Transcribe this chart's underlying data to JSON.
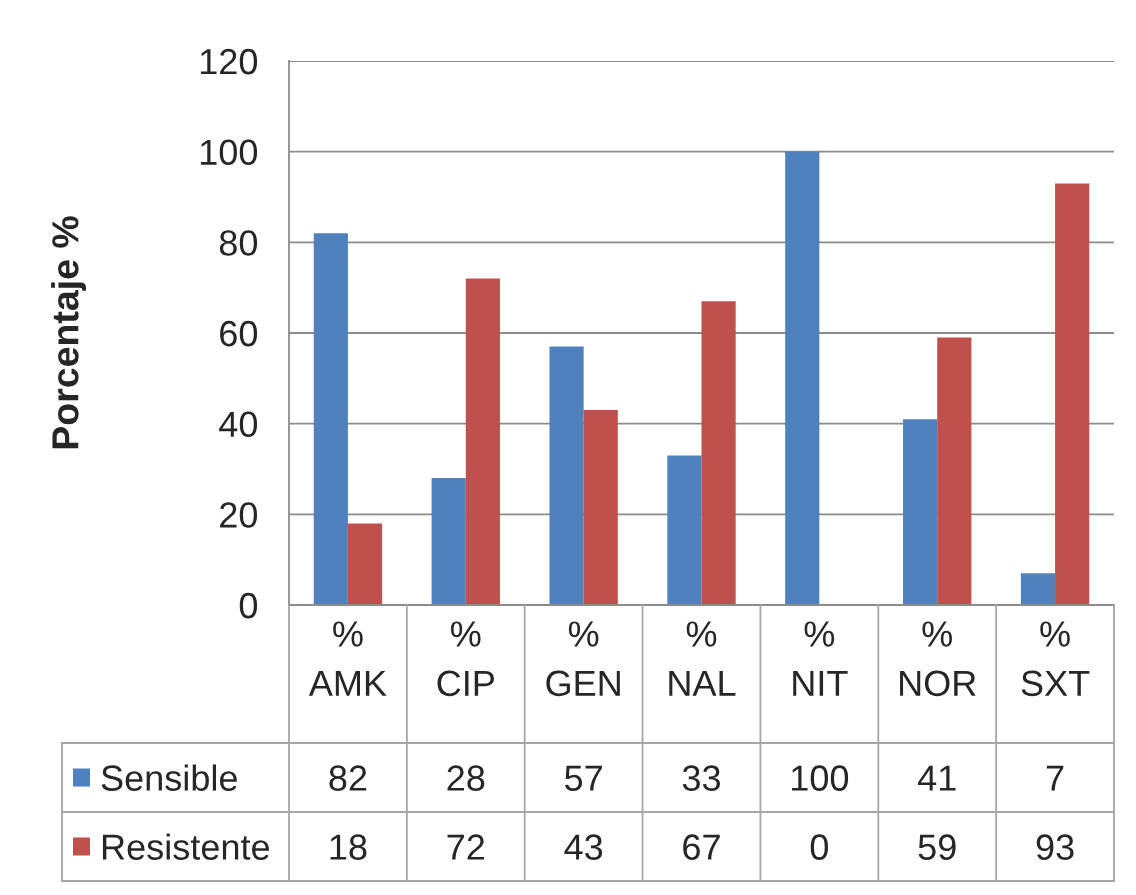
{
  "chart_data": {
    "type": "bar",
    "ylabel": "Porcentaje %",
    "categories": [
      "% AMK",
      "% CIP",
      "% GEN",
      "% NAL",
      "% NIT",
      "% NOR",
      "% SXT"
    ],
    "series": [
      {
        "name": "Sensible",
        "color": "#4f81bd",
        "values": [
          82,
          28,
          57,
          33,
          100,
          41,
          7
        ]
      },
      {
        "name": "Resistente",
        "color": "#c0504d",
        "values": [
          18,
          72,
          43,
          67,
          0,
          59,
          93
        ]
      }
    ],
    "ylim": [
      0,
      120
    ],
    "yticks": [
      0,
      20,
      40,
      60,
      80,
      100,
      120
    ],
    "grid": "y",
    "legend": "bottom",
    "data_labels": true
  }
}
